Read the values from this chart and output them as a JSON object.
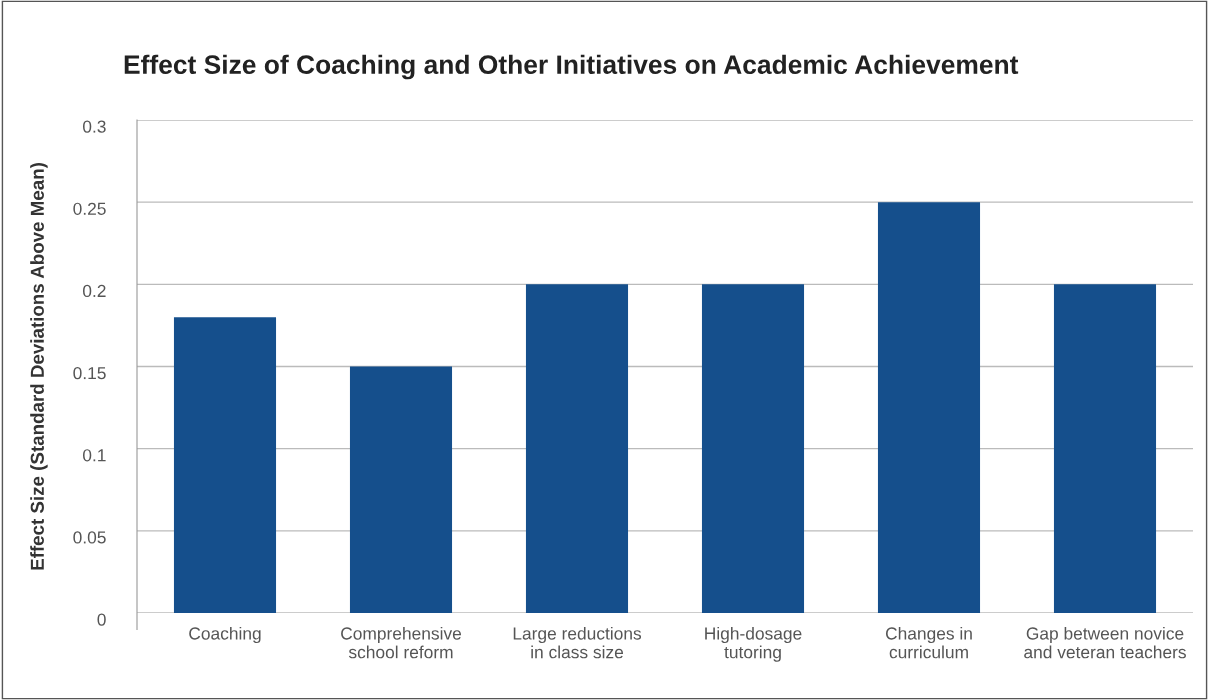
{
  "chart_data": {
    "type": "bar",
    "title": "Effect Size of Coaching and Other Initiatives on Academic Achievement",
    "ylabel": "Effect Size (Standard Deviations Above Mean)",
    "categories": [
      "Coaching",
      "Comprehensive\nschool reform",
      "Large reductions\nin class size",
      "High-dosage\ntutoring",
      "Changes in\ncurriculum",
      "Gap between novice\nand veteran teachers"
    ],
    "values": [
      0.18,
      0.15,
      0.2,
      0.2,
      0.25,
      0.2
    ],
    "color": "#154f8c",
    "ylim": [
      0,
      0.3
    ],
    "yticks": [
      0,
      0.05,
      0.1,
      0.15,
      0.2,
      0.25,
      0.3
    ],
    "grid": "y",
    "legend": false
  }
}
